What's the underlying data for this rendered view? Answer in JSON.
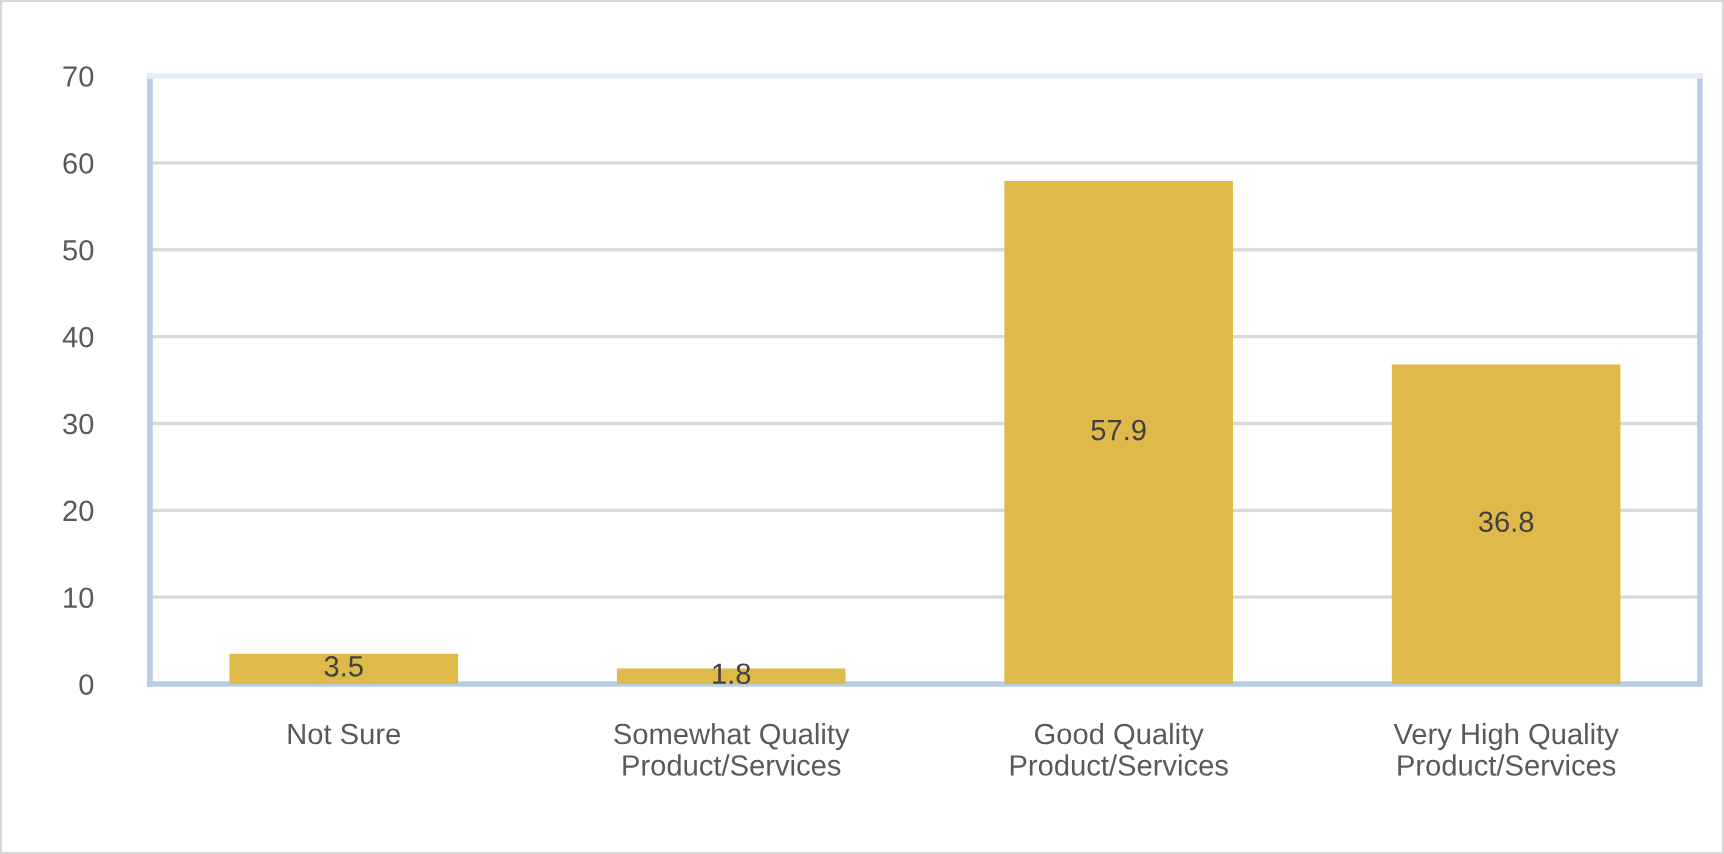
{
  "chart_data": {
    "type": "bar",
    "categories": [
      "Not Sure",
      "Somewhat Quality\nProduct/Services",
      "Good Quality\nProduct/Services",
      "Very High Quality\nProduct/Services"
    ],
    "values": [
      3.5,
      1.8,
      57.9,
      36.8
    ],
    "color": "#e0b94b",
    "ylim": [
      0,
      70
    ],
    "yticks": [
      0,
      10,
      20,
      30,
      40,
      50,
      60,
      70
    ],
    "grid": "y",
    "data_labels": true
  }
}
